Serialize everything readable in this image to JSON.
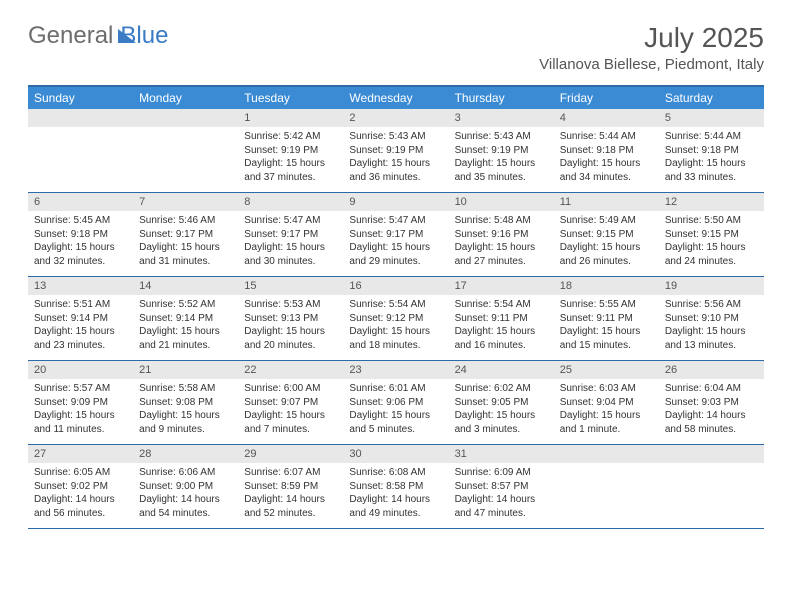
{
  "logo": {
    "part1": "General",
    "part2": "Blue"
  },
  "header": {
    "title": "July 2025",
    "location": "Villanova Biellese, Piedmont, Italy"
  },
  "dayNames": [
    "Sunday",
    "Monday",
    "Tuesday",
    "Wednesday",
    "Thursday",
    "Friday",
    "Saturday"
  ],
  "colors": {
    "headerBg": "#3b8bd4",
    "headerText": "#ffffff",
    "borderAccent": "#2f6aa8",
    "dayNumBg": "#e8e8e8",
    "logoGray": "#6d6d6d",
    "logoBlue": "#3b7cc4"
  },
  "weeks": [
    [
      null,
      null,
      {
        "n": "1",
        "sr": "5:42 AM",
        "ss": "9:19 PM",
        "dl": "15 hours and 37 minutes."
      },
      {
        "n": "2",
        "sr": "5:43 AM",
        "ss": "9:19 PM",
        "dl": "15 hours and 36 minutes."
      },
      {
        "n": "3",
        "sr": "5:43 AM",
        "ss": "9:19 PM",
        "dl": "15 hours and 35 minutes."
      },
      {
        "n": "4",
        "sr": "5:44 AM",
        "ss": "9:18 PM",
        "dl": "15 hours and 34 minutes."
      },
      {
        "n": "5",
        "sr": "5:44 AM",
        "ss": "9:18 PM",
        "dl": "15 hours and 33 minutes."
      }
    ],
    [
      {
        "n": "6",
        "sr": "5:45 AM",
        "ss": "9:18 PM",
        "dl": "15 hours and 32 minutes."
      },
      {
        "n": "7",
        "sr": "5:46 AM",
        "ss": "9:17 PM",
        "dl": "15 hours and 31 minutes."
      },
      {
        "n": "8",
        "sr": "5:47 AM",
        "ss": "9:17 PM",
        "dl": "15 hours and 30 minutes."
      },
      {
        "n": "9",
        "sr": "5:47 AM",
        "ss": "9:17 PM",
        "dl": "15 hours and 29 minutes."
      },
      {
        "n": "10",
        "sr": "5:48 AM",
        "ss": "9:16 PM",
        "dl": "15 hours and 27 minutes."
      },
      {
        "n": "11",
        "sr": "5:49 AM",
        "ss": "9:15 PM",
        "dl": "15 hours and 26 minutes."
      },
      {
        "n": "12",
        "sr": "5:50 AM",
        "ss": "9:15 PM",
        "dl": "15 hours and 24 minutes."
      }
    ],
    [
      {
        "n": "13",
        "sr": "5:51 AM",
        "ss": "9:14 PM",
        "dl": "15 hours and 23 minutes."
      },
      {
        "n": "14",
        "sr": "5:52 AM",
        "ss": "9:14 PM",
        "dl": "15 hours and 21 minutes."
      },
      {
        "n": "15",
        "sr": "5:53 AM",
        "ss": "9:13 PM",
        "dl": "15 hours and 20 minutes."
      },
      {
        "n": "16",
        "sr": "5:54 AM",
        "ss": "9:12 PM",
        "dl": "15 hours and 18 minutes."
      },
      {
        "n": "17",
        "sr": "5:54 AM",
        "ss": "9:11 PM",
        "dl": "15 hours and 16 minutes."
      },
      {
        "n": "18",
        "sr": "5:55 AM",
        "ss": "9:11 PM",
        "dl": "15 hours and 15 minutes."
      },
      {
        "n": "19",
        "sr": "5:56 AM",
        "ss": "9:10 PM",
        "dl": "15 hours and 13 minutes."
      }
    ],
    [
      {
        "n": "20",
        "sr": "5:57 AM",
        "ss": "9:09 PM",
        "dl": "15 hours and 11 minutes."
      },
      {
        "n": "21",
        "sr": "5:58 AM",
        "ss": "9:08 PM",
        "dl": "15 hours and 9 minutes."
      },
      {
        "n": "22",
        "sr": "6:00 AM",
        "ss": "9:07 PM",
        "dl": "15 hours and 7 minutes."
      },
      {
        "n": "23",
        "sr": "6:01 AM",
        "ss": "9:06 PM",
        "dl": "15 hours and 5 minutes."
      },
      {
        "n": "24",
        "sr": "6:02 AM",
        "ss": "9:05 PM",
        "dl": "15 hours and 3 minutes."
      },
      {
        "n": "25",
        "sr": "6:03 AM",
        "ss": "9:04 PM",
        "dl": "15 hours and 1 minute."
      },
      {
        "n": "26",
        "sr": "6:04 AM",
        "ss": "9:03 PM",
        "dl": "14 hours and 58 minutes."
      }
    ],
    [
      {
        "n": "27",
        "sr": "6:05 AM",
        "ss": "9:02 PM",
        "dl": "14 hours and 56 minutes."
      },
      {
        "n": "28",
        "sr": "6:06 AM",
        "ss": "9:00 PM",
        "dl": "14 hours and 54 minutes."
      },
      {
        "n": "29",
        "sr": "6:07 AM",
        "ss": "8:59 PM",
        "dl": "14 hours and 52 minutes."
      },
      {
        "n": "30",
        "sr": "6:08 AM",
        "ss": "8:58 PM",
        "dl": "14 hours and 49 minutes."
      },
      {
        "n": "31",
        "sr": "6:09 AM",
        "ss": "8:57 PM",
        "dl": "14 hours and 47 minutes."
      },
      null,
      null
    ]
  ],
  "labels": {
    "sunrise": "Sunrise:",
    "sunset": "Sunset:",
    "daylight": "Daylight:"
  }
}
